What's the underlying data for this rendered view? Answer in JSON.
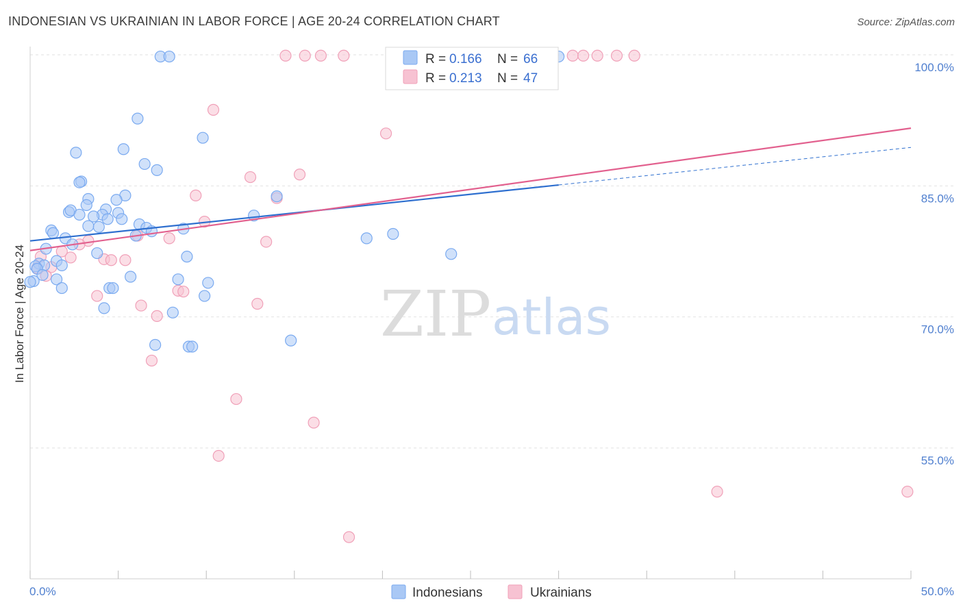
{
  "title": "INDONESIAN VS UKRAINIAN IN LABOR FORCE | AGE 20-24 CORRELATION CHART",
  "source": "Source: ZipAtlas.com",
  "watermark": {
    "zip": "ZIP",
    "atlas": "atlas"
  },
  "chart_data": {
    "type": "scatter",
    "xlabel": "",
    "ylabel": "In Labor Force | Age 20-24",
    "xlim": [
      0,
      50
    ],
    "ylim": [
      40.5,
      101.5
    ],
    "x_tick_labels": [
      {
        "value": 0,
        "label": "0.0%"
      },
      {
        "value": 50,
        "label": "50.0%"
      }
    ],
    "y_tick_labels": [
      {
        "value": 100,
        "label": "100.0%"
      },
      {
        "value": 85,
        "label": "85.0%"
      },
      {
        "value": 70,
        "label": "70.0%"
      },
      {
        "value": 55,
        "label": "55.0%"
      }
    ],
    "legend": {
      "entries": [
        {
          "r_label": "R = ",
          "r_value": "0.166",
          "n_label": "N = ",
          "n_value": "66"
        },
        {
          "r_label": "R = ",
          "r_value": "0.213",
          "n_label": "N = ",
          "n_value": "47"
        }
      ]
    },
    "series": [
      {
        "name": "Indonesians",
        "color": "#7aaaf0",
        "fill": "#a9c8f5",
        "line_color": "#2e6fcf",
        "trend": {
          "x0": 0,
          "y0": 78.7,
          "x1": 30,
          "y1": 85.1,
          "dashed_to_x": 50,
          "dashed_to_y": 89.4
        },
        "points": [
          [
            7.4,
            99.8
          ],
          [
            7.9,
            99.8
          ],
          [
            30.0,
            99.8
          ],
          [
            6.1,
            92.7
          ],
          [
            9.8,
            90.5
          ],
          [
            5.3,
            89.2
          ],
          [
            2.6,
            88.8
          ],
          [
            6.5,
            87.5
          ],
          [
            7.2,
            86.8
          ],
          [
            2.9,
            85.5
          ],
          [
            2.8,
            85.4
          ],
          [
            5.4,
            83.9
          ],
          [
            14.0,
            83.8
          ],
          [
            4.9,
            83.4
          ],
          [
            3.3,
            83.5
          ],
          [
            3.2,
            82.8
          ],
          [
            4.3,
            82.3
          ],
          [
            2.2,
            82.0
          ],
          [
            2.3,
            82.2
          ],
          [
            4.1,
            81.7
          ],
          [
            2.8,
            81.7
          ],
          [
            5.0,
            81.9
          ],
          [
            3.6,
            81.5
          ],
          [
            12.7,
            81.6
          ],
          [
            5.2,
            81.2
          ],
          [
            4.4,
            81.2
          ],
          [
            6.2,
            80.6
          ],
          [
            3.3,
            80.4
          ],
          [
            3.9,
            80.3
          ],
          [
            8.7,
            80.1
          ],
          [
            6.6,
            80.2
          ],
          [
            6.9,
            79.8
          ],
          [
            1.2,
            79.9
          ],
          [
            1.3,
            79.6
          ],
          [
            2.0,
            79.0
          ],
          [
            19.1,
            79.0
          ],
          [
            20.6,
            79.5
          ],
          [
            6.0,
            79.3
          ],
          [
            2.4,
            78.3
          ],
          [
            0.9,
            77.8
          ],
          [
            3.8,
            77.3
          ],
          [
            8.9,
            76.9
          ],
          [
            23.9,
            77.2
          ],
          [
            1.5,
            76.4
          ],
          [
            0.5,
            76.1
          ],
          [
            0.8,
            75.9
          ],
          [
            0.3,
            75.8
          ],
          [
            1.8,
            75.9
          ],
          [
            0.4,
            75.5
          ],
          [
            0.7,
            74.8
          ],
          [
            5.7,
            74.6
          ],
          [
            8.4,
            74.3
          ],
          [
            10.1,
            73.9
          ],
          [
            0.2,
            74.1
          ],
          [
            1.5,
            74.3
          ],
          [
            1.8,
            73.3
          ],
          [
            4.5,
            73.3
          ],
          [
            4.7,
            73.3
          ],
          [
            9.9,
            72.4
          ],
          [
            4.2,
            71.0
          ],
          [
            8.1,
            70.5
          ],
          [
            14.8,
            67.3
          ],
          [
            7.1,
            66.8
          ],
          [
            9.0,
            66.6
          ],
          [
            9.2,
            66.6
          ],
          [
            0.0,
            74.0
          ]
        ]
      },
      {
        "name": "Ukrainians",
        "color": "#f0a0b8",
        "fill": "#f7c2d2",
        "line_color": "#e2608e",
        "trend": {
          "x0": 0,
          "y0": 77.6,
          "x1": 50,
          "y1": 91.6
        },
        "points": [
          [
            14.5,
            99.9
          ],
          [
            15.6,
            99.9
          ],
          [
            16.5,
            99.9
          ],
          [
            17.8,
            99.9
          ],
          [
            22.2,
            99.9
          ],
          [
            22.8,
            99.9
          ],
          [
            23.9,
            99.9
          ],
          [
            24.2,
            99.9
          ],
          [
            30.8,
            99.9
          ],
          [
            31.4,
            99.9
          ],
          [
            32.2,
            99.9
          ],
          [
            33.3,
            99.9
          ],
          [
            34.3,
            99.9
          ],
          [
            10.4,
            93.7
          ],
          [
            20.2,
            91.0
          ],
          [
            15.3,
            86.3
          ],
          [
            12.5,
            86.0
          ],
          [
            9.4,
            83.9
          ],
          [
            14.0,
            83.6
          ],
          [
            9.9,
            80.9
          ],
          [
            7.9,
            79.0
          ],
          [
            6.1,
            79.3
          ],
          [
            13.4,
            78.6
          ],
          [
            3.3,
            78.7
          ],
          [
            2.8,
            78.3
          ],
          [
            1.8,
            77.5
          ],
          [
            0.6,
            76.9
          ],
          [
            2.3,
            76.8
          ],
          [
            4.2,
            76.6
          ],
          [
            4.6,
            76.5
          ],
          [
            5.4,
            76.5
          ],
          [
            0.4,
            75.6
          ],
          [
            1.2,
            75.7
          ],
          [
            0.9,
            74.7
          ],
          [
            8.4,
            73.0
          ],
          [
            8.7,
            72.9
          ],
          [
            3.8,
            72.4
          ],
          [
            12.9,
            71.5
          ],
          [
            6.3,
            71.3
          ],
          [
            7.2,
            70.1
          ],
          [
            6.9,
            65.0
          ],
          [
            11.7,
            60.6
          ],
          [
            16.1,
            57.9
          ],
          [
            10.7,
            54.1
          ],
          [
            39.0,
            50.0
          ],
          [
            49.8,
            50.0
          ],
          [
            18.1,
            44.8
          ]
        ]
      }
    ]
  }
}
